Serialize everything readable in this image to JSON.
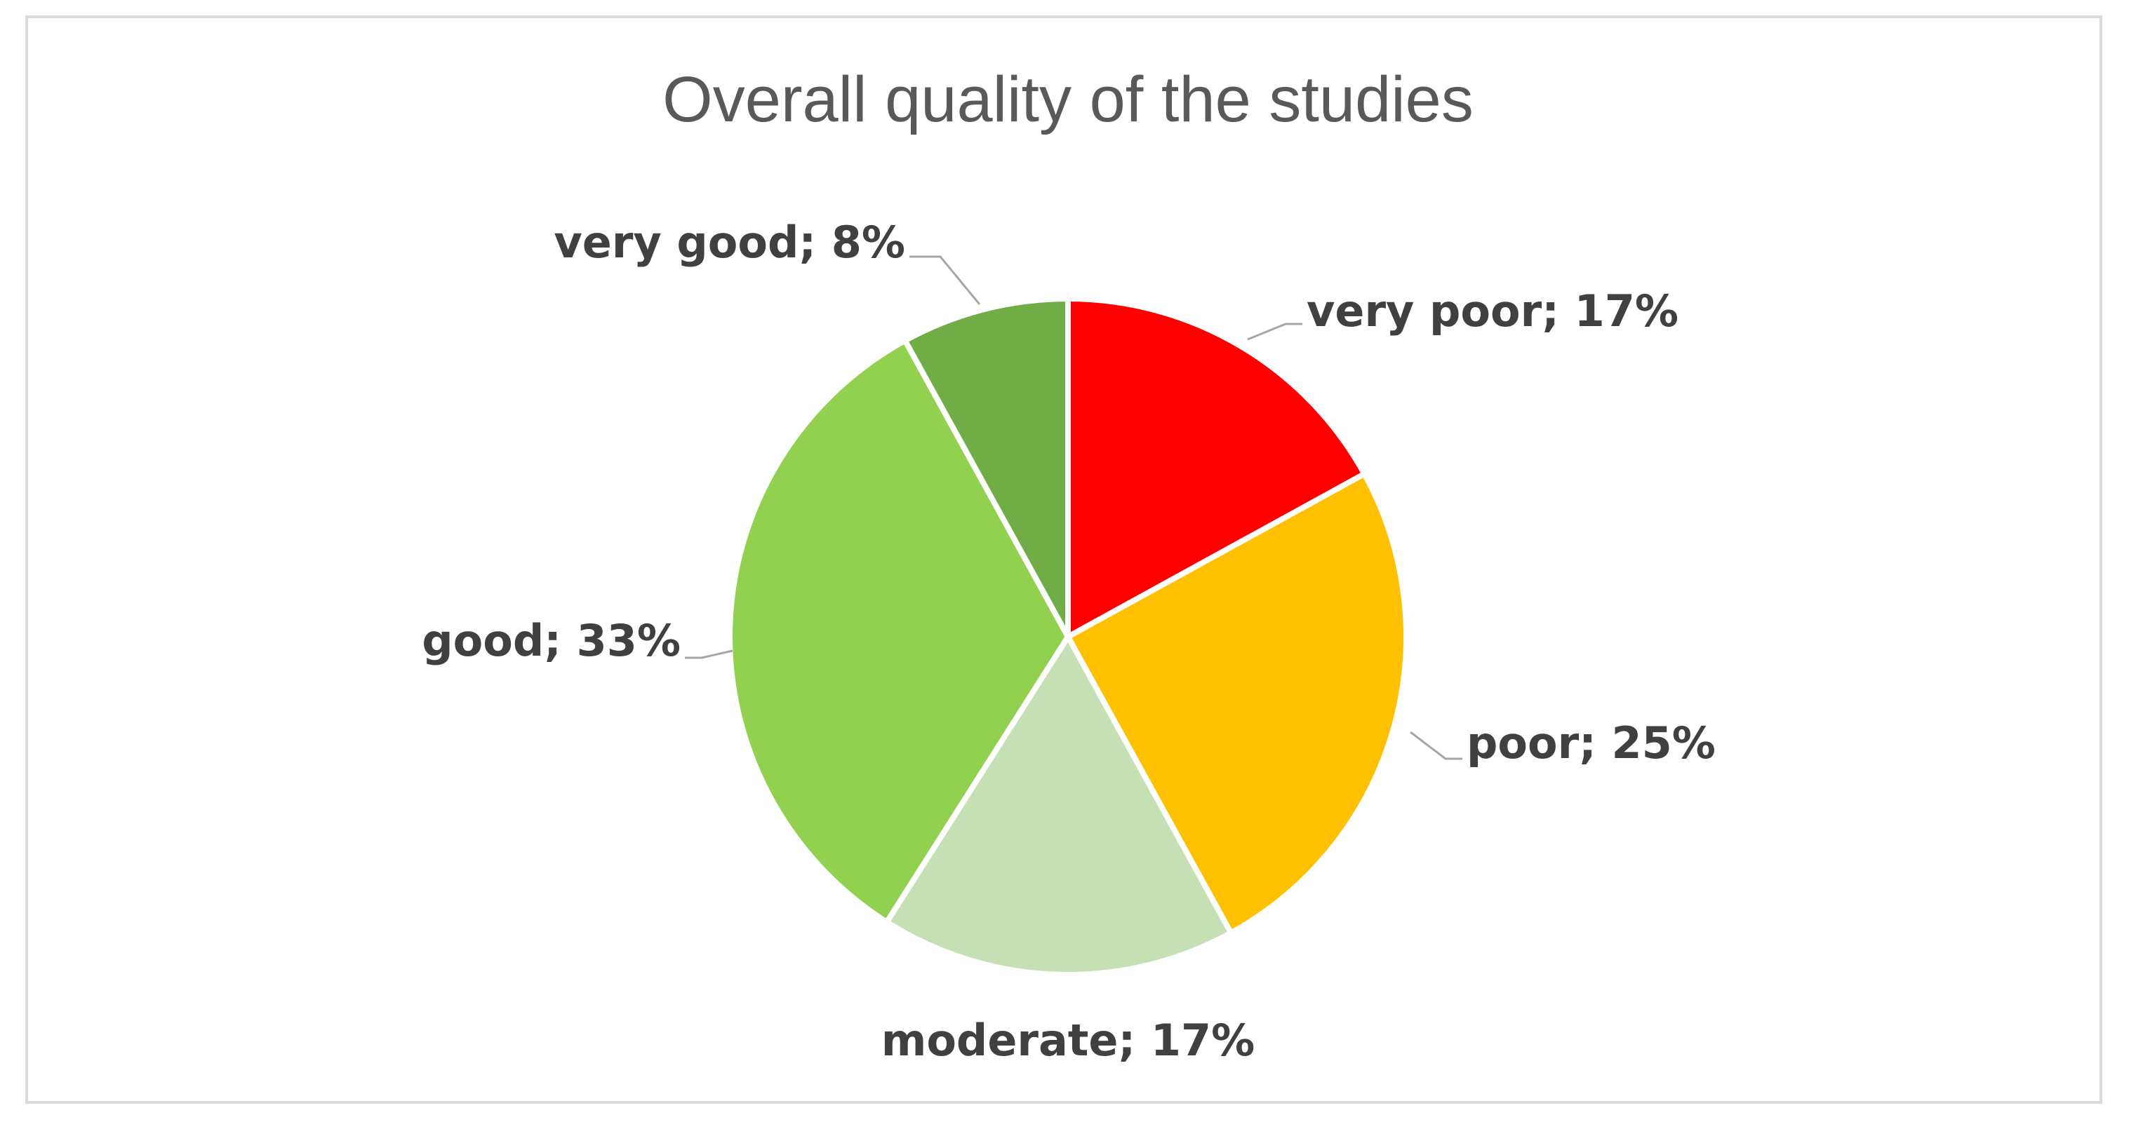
{
  "chart_data": {
    "type": "pie",
    "title": "Overall quality of the studies",
    "slices": [
      {
        "label": "very poor",
        "value": 17,
        "display": "very poor; 17%",
        "color": "#ff0000"
      },
      {
        "label": "poor",
        "value": 25,
        "display": "poor; 25%",
        "color": "#ffc000"
      },
      {
        "label": "moderate",
        "value": 17,
        "display": "moderate; 17%",
        "color": "#c5e0b4"
      },
      {
        "label": "good",
        "value": 33,
        "display": "good; 33%",
        "color": "#92d050"
      },
      {
        "label": "very good",
        "value": 8,
        "display": "very good; 8%",
        "color": "#70ad47"
      }
    ],
    "start_angle": "12 o'clock",
    "direction": "clockwise",
    "legend": "none",
    "data_labels": "category; percentage"
  }
}
